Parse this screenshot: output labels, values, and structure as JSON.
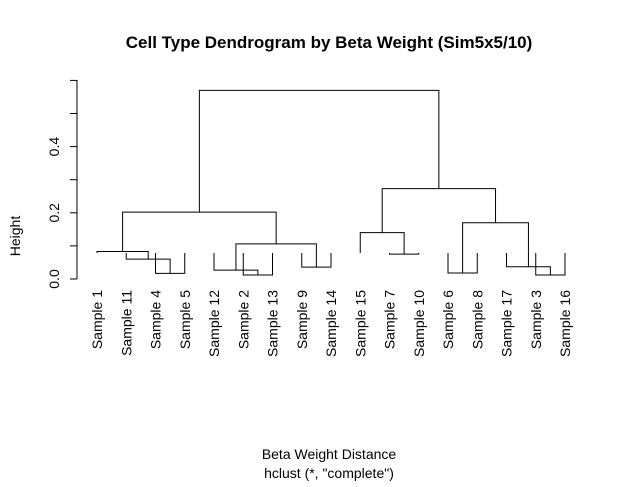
{
  "chart_data": {
    "type": "dendrogram",
    "title": "Cell Type Dendrogram by Beta Weight (Sim5x5/10)",
    "xlabel": "Beta Weight Distance",
    "sub": "hclust (*, \"complete\")",
    "ylabel": "Height",
    "ylim": [
      0,
      0.55
    ],
    "yticks": [
      0.0,
      0.2,
      0.4
    ],
    "ytick_labels": [
      "0.0",
      "0.2",
      "0.4"
    ],
    "leaves": [
      "Sample 1",
      "Sample 11",
      "Sample 4",
      "Sample 5",
      "Sample 12",
      "Sample 2",
      "Sample 13",
      "Sample 9",
      "Sample 14",
      "Sample 15",
      "Sample 7",
      "Sample 10",
      "Sample 6",
      "Sample 8",
      "Sample 17",
      "Sample 3",
      "Sample 16"
    ],
    "merges": [
      {
        "left": "Sample 4",
        "right": "Sample 5",
        "height": 0.017
      },
      {
        "left": "Sample 11",
        "right": "m1",
        "height": 0.06
      },
      {
        "left": "Sample 1",
        "right": "m2",
        "height": 0.083
      },
      {
        "left": "Sample 2",
        "right": "Sample 13",
        "height": 0.012
      },
      {
        "left": "Sample 12",
        "right": "m4",
        "height": 0.027
      },
      {
        "left": "Sample 9",
        "right": "Sample 14",
        "height": 0.036
      },
      {
        "left": "m5",
        "right": "m6",
        "height": 0.106
      },
      {
        "left": "m3",
        "right": "m7",
        "height": 0.202
      },
      {
        "left": "Sample 7",
        "right": "Sample 10",
        "height": 0.075
      },
      {
        "left": "Sample 15",
        "right": "m9",
        "height": 0.14
      },
      {
        "left": "Sample 6",
        "right": "Sample 8",
        "height": 0.018
      },
      {
        "left": "Sample 3",
        "right": "Sample 16",
        "height": 0.012
      },
      {
        "left": "Sample 17",
        "right": "m12",
        "height": 0.037
      },
      {
        "left": "m11",
        "right": "m13",
        "height": 0.17
      },
      {
        "left": "m10",
        "right": "m14",
        "height": 0.273
      },
      {
        "left": "m8",
        "right": "m15",
        "height": 0.57
      }
    ]
  }
}
